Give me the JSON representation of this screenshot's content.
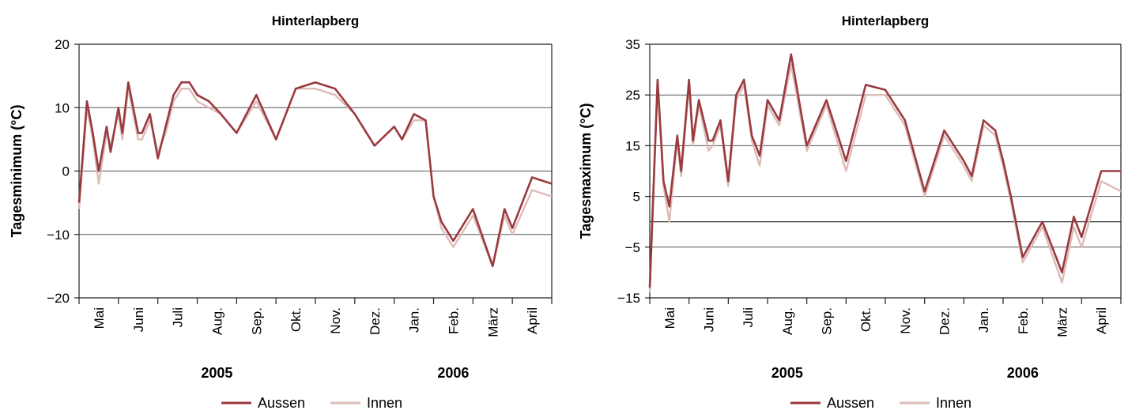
{
  "colors": {
    "aussen": "#9a3a3f",
    "innen": "#dcbcb6",
    "grid": "#555555",
    "axis": "#222222"
  },
  "legend": {
    "aussen_label": "Aussen",
    "innen_label": "Innen"
  },
  "chart_data": [
    {
      "type": "line",
      "title": "Hinterlapberg",
      "ylabel": "Tagesminimum (°C)",
      "xlabel": "",
      "ylim": [
        -20,
        20
      ],
      "yticks": [
        20,
        10,
        0,
        -10,
        -20
      ],
      "ytick_labels": [
        "20",
        "10",
        "0",
        "−10",
        "−20"
      ],
      "grid": "horizontal",
      "legend_position": "bottom-center",
      "x_months": [
        "Mai",
        "Juni",
        "Juli",
        "Aug.",
        "Sep.",
        "Okt.",
        "Nov.",
        "Dez.",
        "Jan.",
        "Feb.",
        "März",
        "April"
      ],
      "years": [
        {
          "label": "2005",
          "month": "Aug."
        },
        {
          "label": "2006",
          "month": "Feb."
        }
      ],
      "x": [
        0,
        0.2,
        0.35,
        0.5,
        0.7,
        0.8,
        1.0,
        1.1,
        1.25,
        1.5,
        1.6,
        1.8,
        2.0,
        2.2,
        2.4,
        2.6,
        2.8,
        3.0,
        3.3,
        3.6,
        4.0,
        4.5,
        5.0,
        5.5,
        6.0,
        6.5,
        7.0,
        7.5,
        8.0,
        8.2,
        8.5,
        8.8,
        9.0,
        9.2,
        9.5,
        10.0,
        10.5,
        10.8,
        11.0,
        11.5,
        12.0
      ],
      "series": [
        {
          "name": "Aussen",
          "values": [
            -5,
            11,
            6,
            0,
            7,
            3,
            10,
            6,
            14,
            6,
            6,
            9,
            2,
            7,
            12,
            14,
            14,
            12,
            11,
            9,
            6,
            12,
            5,
            13,
            14,
            13,
            9,
            4,
            7,
            5,
            9,
            8,
            -4,
            -8,
            -11,
            -6,
            -15,
            -6,
            -9,
            -1,
            -2
          ]
        },
        {
          "name": "Innen",
          "values": [
            -6,
            10,
            5,
            -2,
            6,
            4,
            9,
            5,
            13,
            5,
            5,
            8,
            3,
            6,
            11,
            13,
            13,
            11,
            10,
            9,
            6,
            11,
            5,
            13,
            13,
            12,
            9,
            4,
            7,
            5,
            8,
            8,
            -4,
            -9,
            -12,
            -7,
            -15,
            -7,
            -10,
            -3,
            -4
          ]
        }
      ]
    },
    {
      "type": "line",
      "title": "Hinterlapberg",
      "ylabel": "Tagesmaximum (°C)",
      "xlabel": "",
      "ylim": [
        -15,
        35
      ],
      "yticks": [
        35,
        25,
        15,
        5,
        -5,
        -15
      ],
      "ytick_labels": [
        "35",
        "25",
        "15",
        "5",
        "−5",
        "−15"
      ],
      "grid": "horizontal",
      "legend_position": "bottom-center",
      "x_months": [
        "Mai",
        "Juni",
        "Juli",
        "Aug.",
        "Sep.",
        "Okt.",
        "Nov.",
        "Dez.",
        "Jan.",
        "Feb.",
        "März",
        "April"
      ],
      "years": [
        {
          "label": "2005",
          "month": "Aug."
        },
        {
          "label": "2006",
          "month": "Feb."
        }
      ],
      "x": [
        0,
        0.2,
        0.35,
        0.5,
        0.7,
        0.8,
        1.0,
        1.1,
        1.25,
        1.5,
        1.6,
        1.8,
        2.0,
        2.2,
        2.4,
        2.6,
        2.8,
        3.0,
        3.3,
        3.6,
        4.0,
        4.5,
        5.0,
        5.5,
        6.0,
        6.5,
        7.0,
        7.5,
        8.0,
        8.2,
        8.5,
        8.8,
        9.0,
        9.2,
        9.5,
        10.0,
        10.5,
        10.8,
        11.0,
        11.5,
        12.0
      ],
      "series": [
        {
          "name": "Aussen",
          "values": [
            -13,
            28,
            8,
            3,
            17,
            10,
            28,
            16,
            24,
            16,
            16,
            20,
            8,
            25,
            28,
            17,
            13,
            24,
            20,
            33,
            15,
            24,
            12,
            27,
            26,
            20,
            6,
            18,
            12,
            9,
            20,
            18,
            12,
            5,
            -7,
            0,
            -10,
            1,
            -3,
            10,
            10
          ]
        },
        {
          "name": "Innen",
          "values": [
            -14,
            27,
            7,
            0,
            16,
            9,
            27,
            15,
            23,
            14,
            15,
            19,
            7,
            24,
            27,
            16,
            11,
            23,
            19,
            31,
            14,
            23,
            10,
            25,
            25,
            19,
            5,
            17,
            11,
            8,
            19,
            17,
            11,
            4,
            -8,
            -1,
            -12,
            -1,
            -5,
            8,
            6
          ]
        }
      ]
    }
  ]
}
